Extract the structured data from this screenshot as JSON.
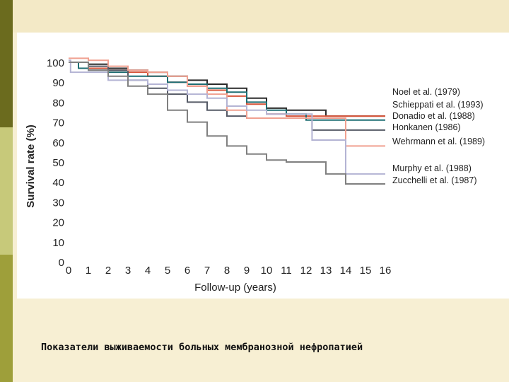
{
  "caption": "Показатели выживаемости больных мембранозной нефропатией",
  "chart_data": {
    "type": "line",
    "title": "",
    "xlabel": "Follow-up (years)",
    "ylabel": "Survival rate (%)",
    "xlim": [
      0,
      16
    ],
    "ylim": [
      0,
      100
    ],
    "xticks": [
      "0",
      "1",
      "2",
      "3",
      "4",
      "5",
      "6",
      "7",
      "8",
      "9",
      "10",
      "11",
      "12",
      "13",
      "14",
      "15",
      "16"
    ],
    "yticks": [
      "0",
      "10",
      "20",
      "30",
      "40",
      "50",
      "60",
      "70",
      "80",
      "90",
      "100"
    ],
    "grid": false,
    "legend_position": "right",
    "series": [
      {
        "name": "Noel et al. (1979)",
        "color": "#2a2a2a",
        "x": [
          0,
          1,
          2,
          3,
          4,
          5,
          6,
          7,
          8,
          9,
          10,
          11,
          12,
          13,
          16
        ],
        "y": [
          100,
          99,
          97,
          96,
          95,
          93,
          91,
          89,
          87,
          82,
          77,
          76,
          76,
          73,
          73
        ]
      },
      {
        "name": "Schieppati et al. (1993)",
        "color": "#d8553a",
        "x": [
          0,
          1,
          2,
          3,
          4,
          5,
          6,
          7,
          8,
          9,
          10,
          11,
          12,
          13,
          16
        ],
        "y": [
          100,
          97,
          96,
          95,
          93,
          90,
          88,
          86,
          83,
          79,
          74,
          73,
          73,
          73,
          73
        ]
      },
      {
        "name": "Donadio et al. (1988)",
        "color": "#1e6e73",
        "x": [
          0,
          0.5,
          1,
          2,
          3,
          4,
          5,
          6,
          7,
          8,
          9,
          10,
          11,
          12,
          16
        ],
        "y": [
          100,
          97,
          96,
          95,
          93,
          93,
          90,
          89,
          87,
          85,
          80,
          76,
          74,
          71,
          71
        ]
      },
      {
        "name": "Honkanen (1986)",
        "color": "#555a66",
        "x": [
          0,
          1,
          2,
          3,
          4,
          5,
          6,
          7,
          8,
          9,
          10,
          11,
          12,
          12.3,
          16
        ],
        "y": [
          100,
          98,
          96,
          91,
          87,
          84,
          80,
          76,
          73,
          72,
          72,
          72,
          72,
          66,
          66
        ]
      },
      {
        "name": "Wehrmann et al. (1989)",
        "color": "#f0a090",
        "x": [
          0,
          1,
          2,
          3,
          4,
          5,
          6,
          7,
          8,
          9,
          10,
          11,
          12,
          13,
          14,
          16
        ],
        "y": [
          102,
          101,
          98,
          96,
          95,
          93,
          88,
          84,
          76,
          72,
          72,
          72,
          72,
          72,
          58,
          58
        ]
      },
      {
        "name": "Murphy et al. (1988)",
        "color": "#b4b4d4",
        "x": [
          0,
          0.1,
          1,
          2,
          3,
          4,
          5,
          6,
          7,
          8,
          9,
          10,
          11,
          12,
          12.3,
          14,
          16
        ],
        "y": [
          101,
          95,
          95,
          91,
          91,
          89,
          86,
          84,
          82,
          78,
          76,
          74,
          74,
          74,
          61,
          44,
          44
        ]
      },
      {
        "name": "Zucchelli et al. (1987)",
        "color": "#808080",
        "x": [
          0,
          1,
          2,
          3,
          4,
          5,
          6,
          7,
          8,
          9,
          10,
          11,
          12,
          13,
          14,
          16
        ],
        "y": [
          100,
          96,
          93,
          88,
          84,
          76,
          70,
          63,
          58,
          54,
          51,
          50,
          50,
          44,
          39,
          39
        ]
      }
    ]
  }
}
